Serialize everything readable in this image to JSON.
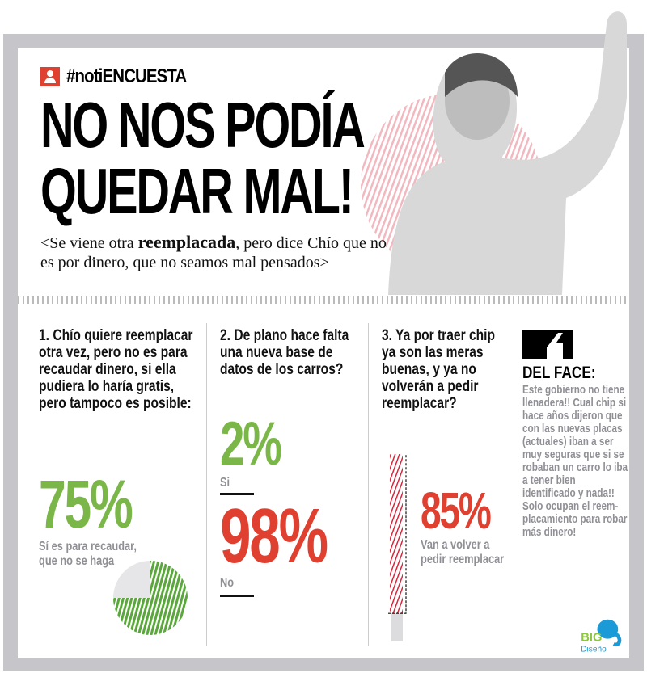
{
  "header": {
    "tag_icon": "user-icon",
    "tag": "#notiENCUESTA",
    "title_line1": "NO NOS PODÍA",
    "title_line2": "QUEDAR MAL!",
    "subtitle_pre": "<Se viene otra ",
    "subtitle_bold": "reemplacada",
    "subtitle_post": ", pero dice Chío que no es por dinero, que no seamos mal pensados>"
  },
  "colors": {
    "accent_red": "#e0402f",
    "accent_green": "#7ab648",
    "label_gray": "#8f8f95",
    "frame_gray": "#c6c6ca",
    "photo_circle_pink": "#f2b8c0"
  },
  "questions": [
    {
      "question": "1. Chío quiere reemplacar otra vez, pero no es para recaudar dinero, si ella pudiera lo haría gratis, pero tampoco es posible:",
      "answers": [
        {
          "percent": "75%",
          "label": "Sí es para recaudar, que no se haga",
          "value": 75
        }
      ],
      "chart": "pie"
    },
    {
      "question": "2. De plano hace falta una nueva base de datos de los carros?",
      "answers": [
        {
          "percent": "2%",
          "label": "Si",
          "value": 2
        },
        {
          "percent": "98%",
          "label": "No",
          "value": 98
        }
      ]
    },
    {
      "question": "3. Ya por traer chip ya son las meras buenas, y ya no volverán a pedir reemplacar?",
      "answers": [
        {
          "percent": "85%",
          "label": "Van a volver a pedir reemplacar",
          "value": 85
        }
      ],
      "chart": "bar"
    }
  ],
  "del_face": {
    "icon": "quote-icon",
    "title": "DEL FACE:",
    "text": "Este gobierno no tiene llenadera!! Cual chip si hace años dijeron que con las nuevas placas (actuales) iban a ser muy seguras que si se robaban un carro lo iba a tener bien identificado y nada!! Solo ocupan el reem-placamiento para robar más dinero!"
  },
  "logo": {
    "text_top": "BIG",
    "text_bottom": "Diseño"
  }
}
